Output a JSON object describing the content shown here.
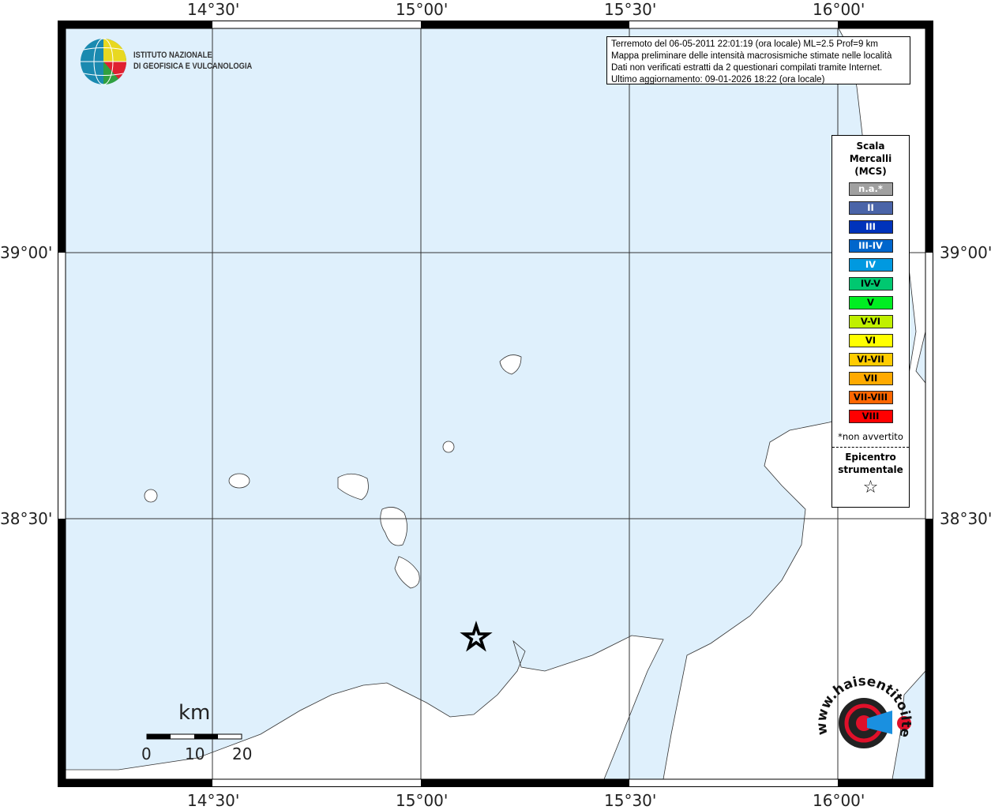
{
  "map": {
    "sea_color": "#dff0fc",
    "land_color": "#ffffff",
    "lon_labels": [
      "14°30'",
      "15°00'",
      "15°30'",
      "16°00'"
    ],
    "lat_labels": [
      "39°00'",
      "38°30'"
    ],
    "scale": {
      "unit": "km",
      "ticks": [
        "0",
        "10",
        "20"
      ]
    },
    "epicenter_icon": "star-icon"
  },
  "info_box": {
    "lines": [
      "Terremoto del 06-05-2011 22:01:19 (ora locale) ML=2.5 Prof=9 km",
      "Mappa preliminare delle intensità macrosismiche stimate nelle località",
      "Dati non verificati estratti da 2 questionari compilati tramite Internet.",
      "Ultimo aggiornamento: 09-01-2026 18:22 (ora locale)"
    ]
  },
  "logo": {
    "line1": "ISTITUTO NAZIONALE",
    "line2": "DI GEOFISICA E VULCANOLOGIA"
  },
  "logo2": {
    "text": "www.haisentitoilterremoto.it"
  },
  "legend": {
    "title": [
      "Scala",
      "Mercalli",
      "(MCS)"
    ],
    "items": [
      {
        "label": "n.a.*",
        "color": "#a0a0a0",
        "text_color": "#ffffff"
      },
      {
        "label": "II",
        "color": "#4a64a8",
        "text_color": "#ffffff"
      },
      {
        "label": "III",
        "color": "#0033bb",
        "text_color": "#ffffff"
      },
      {
        "label": "III-IV",
        "color": "#0066cc",
        "text_color": "#ffffff"
      },
      {
        "label": "IV",
        "color": "#0099e0",
        "text_color": "#ffffff"
      },
      {
        "label": "IV-V",
        "color": "#00c870",
        "text_color": "#000000"
      },
      {
        "label": "V",
        "color": "#00ee22",
        "text_color": "#000000"
      },
      {
        "label": "V-VI",
        "color": "#c0f000",
        "text_color": "#000000"
      },
      {
        "label": "VI",
        "color": "#ffff00",
        "text_color": "#000000"
      },
      {
        "label": "VI-VII",
        "color": "#ffcc00",
        "text_color": "#000000"
      },
      {
        "label": "VII",
        "color": "#ffaa00",
        "text_color": "#000000"
      },
      {
        "label": "VII-VIII",
        "color": "#ff6600",
        "text_color": "#000000"
      },
      {
        "label": "VIII",
        "color": "#ff0000",
        "text_color": "#000000"
      }
    ],
    "note": "*non avvertito",
    "epicenter": [
      "Epicentro",
      "strumentale"
    ],
    "star": "☆"
  }
}
